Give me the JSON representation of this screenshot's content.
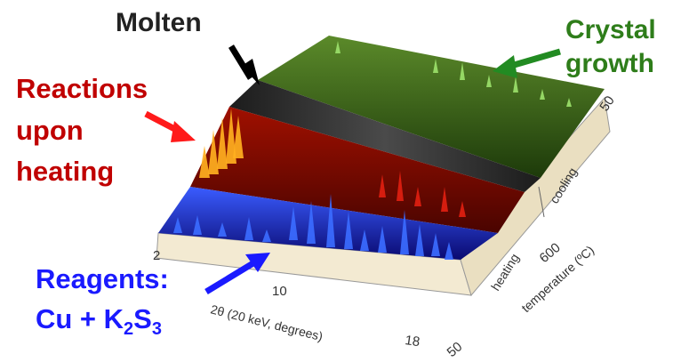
{
  "chart_data": {
    "type": "waterfall-3d",
    "x_axis": {
      "label": "2θ (20 keV, degrees)",
      "ticks": [
        "2",
        "10",
        "18"
      ]
    },
    "z_axis": {
      "label": "temperature (ºC)",
      "ticks": [
        "50",
        "600",
        "50"
      ],
      "segments": [
        "heating",
        "cooling"
      ]
    },
    "regions": [
      {
        "name": "Reagents:",
        "formula_main": "Cu + K",
        "formula_sub1": "2",
        "formula_mid": "S",
        "formula_sub2": "3",
        "color": "#1a1aff"
      },
      {
        "name": "Reactions upon heating",
        "lines": [
          "Reactions",
          "upon",
          "heating"
        ],
        "color": "#c00000"
      },
      {
        "name": "Molten",
        "color": "#222222"
      },
      {
        "name": "Crystal growth",
        "lines": [
          "Crystal",
          "growth"
        ],
        "color": "#2e7d1a"
      }
    ]
  },
  "colors": {
    "floor": "#f3ead2",
    "side": "#eadfc1",
    "blue_band": "#1010a0",
    "red_band": "#7a0800",
    "molten_band": "#2a2a2a",
    "green_band": "#2f5a12",
    "arrow_black": "#000000",
    "arrow_red": "#ff1a1a",
    "arrow_green": "#228b22",
    "arrow_blue": "#1a1aff"
  }
}
